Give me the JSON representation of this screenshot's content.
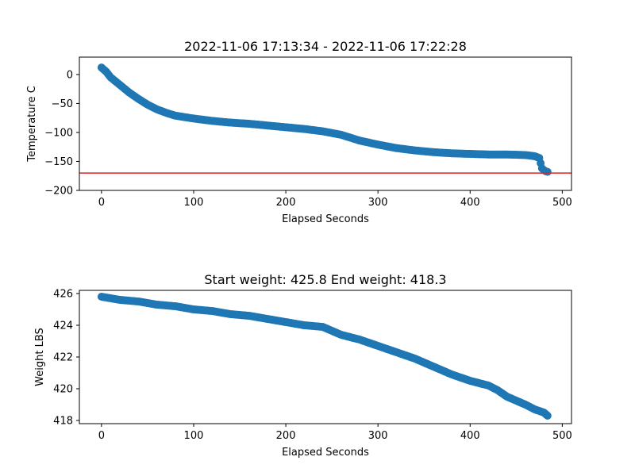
{
  "chart_data": [
    {
      "type": "scatter",
      "title": "2022-11-06 17:13:34 - 2022-11-06 17:22:28",
      "xlabel": "Elapsed Seconds",
      "ylabel": "Temperature C",
      "xlim": [
        -24,
        510
      ],
      "ylim": [
        -200,
        30
      ],
      "xticks": [
        0,
        100,
        200,
        300,
        400,
        500
      ],
      "xtick_labels": [
        "0",
        "100",
        "200",
        "300",
        "400",
        "500"
      ],
      "yticks": [
        -200,
        -150,
        -100,
        -50,
        0
      ],
      "ytick_labels": [
        "−200",
        "−150",
        "−100",
        "−50",
        "0"
      ],
      "grid": false,
      "marker_color": "#1f77b4",
      "hline": {
        "y": -170,
        "color": "#d62728"
      },
      "series": [
        {
          "x": [
            0,
            5,
            10,
            20,
            30,
            40,
            50,
            60,
            70,
            80,
            100,
            120,
            140,
            160,
            180,
            200,
            220,
            240,
            260,
            270,
            280,
            300,
            320,
            340,
            360,
            380,
            400,
            420,
            440,
            460,
            470,
            475,
            478,
            480,
            482,
            484
          ],
          "y": [
            12,
            5,
            -5,
            -18,
            -31,
            -42,
            -52,
            -60,
            -66,
            -71,
            -76,
            -80,
            -83,
            -85,
            -88,
            -91,
            -94,
            -98,
            -104,
            -109,
            -114,
            -121,
            -127,
            -131,
            -134,
            -136,
            -137,
            -138,
            -138,
            -139,
            -141,
            -144,
            -162,
            -165,
            -167,
            -168
          ]
        }
      ]
    },
    {
      "type": "scatter",
      "title": "Start weight: 425.8 End weight: 418.3",
      "xlabel": "Elapsed Seconds",
      "ylabel": "Weight LBS",
      "xlim": [
        -24,
        510
      ],
      "ylim": [
        417.8,
        426.2
      ],
      "xticks": [
        0,
        100,
        200,
        300,
        400,
        500
      ],
      "xtick_labels": [
        "0",
        "100",
        "200",
        "300",
        "400",
        "500"
      ],
      "yticks": [
        418,
        420,
        422,
        424,
        426
      ],
      "ytick_labels": [
        "418",
        "420",
        "422",
        "424",
        "426"
      ],
      "grid": false,
      "marker_color": "#1f77b4",
      "series": [
        {
          "x": [
            0,
            10,
            20,
            40,
            60,
            80,
            100,
            120,
            140,
            160,
            180,
            200,
            220,
            240,
            260,
            280,
            300,
            320,
            340,
            360,
            380,
            400,
            420,
            430,
            440,
            460,
            470,
            480,
            484
          ],
          "y": [
            425.8,
            425.7,
            425.6,
            425.5,
            425.3,
            425.2,
            425.0,
            424.9,
            424.7,
            424.6,
            424.4,
            424.2,
            424.0,
            423.9,
            423.4,
            423.1,
            422.7,
            422.3,
            421.9,
            421.4,
            420.9,
            420.5,
            420.2,
            419.9,
            419.5,
            419.0,
            418.7,
            418.5,
            418.3
          ]
        }
      ]
    }
  ]
}
